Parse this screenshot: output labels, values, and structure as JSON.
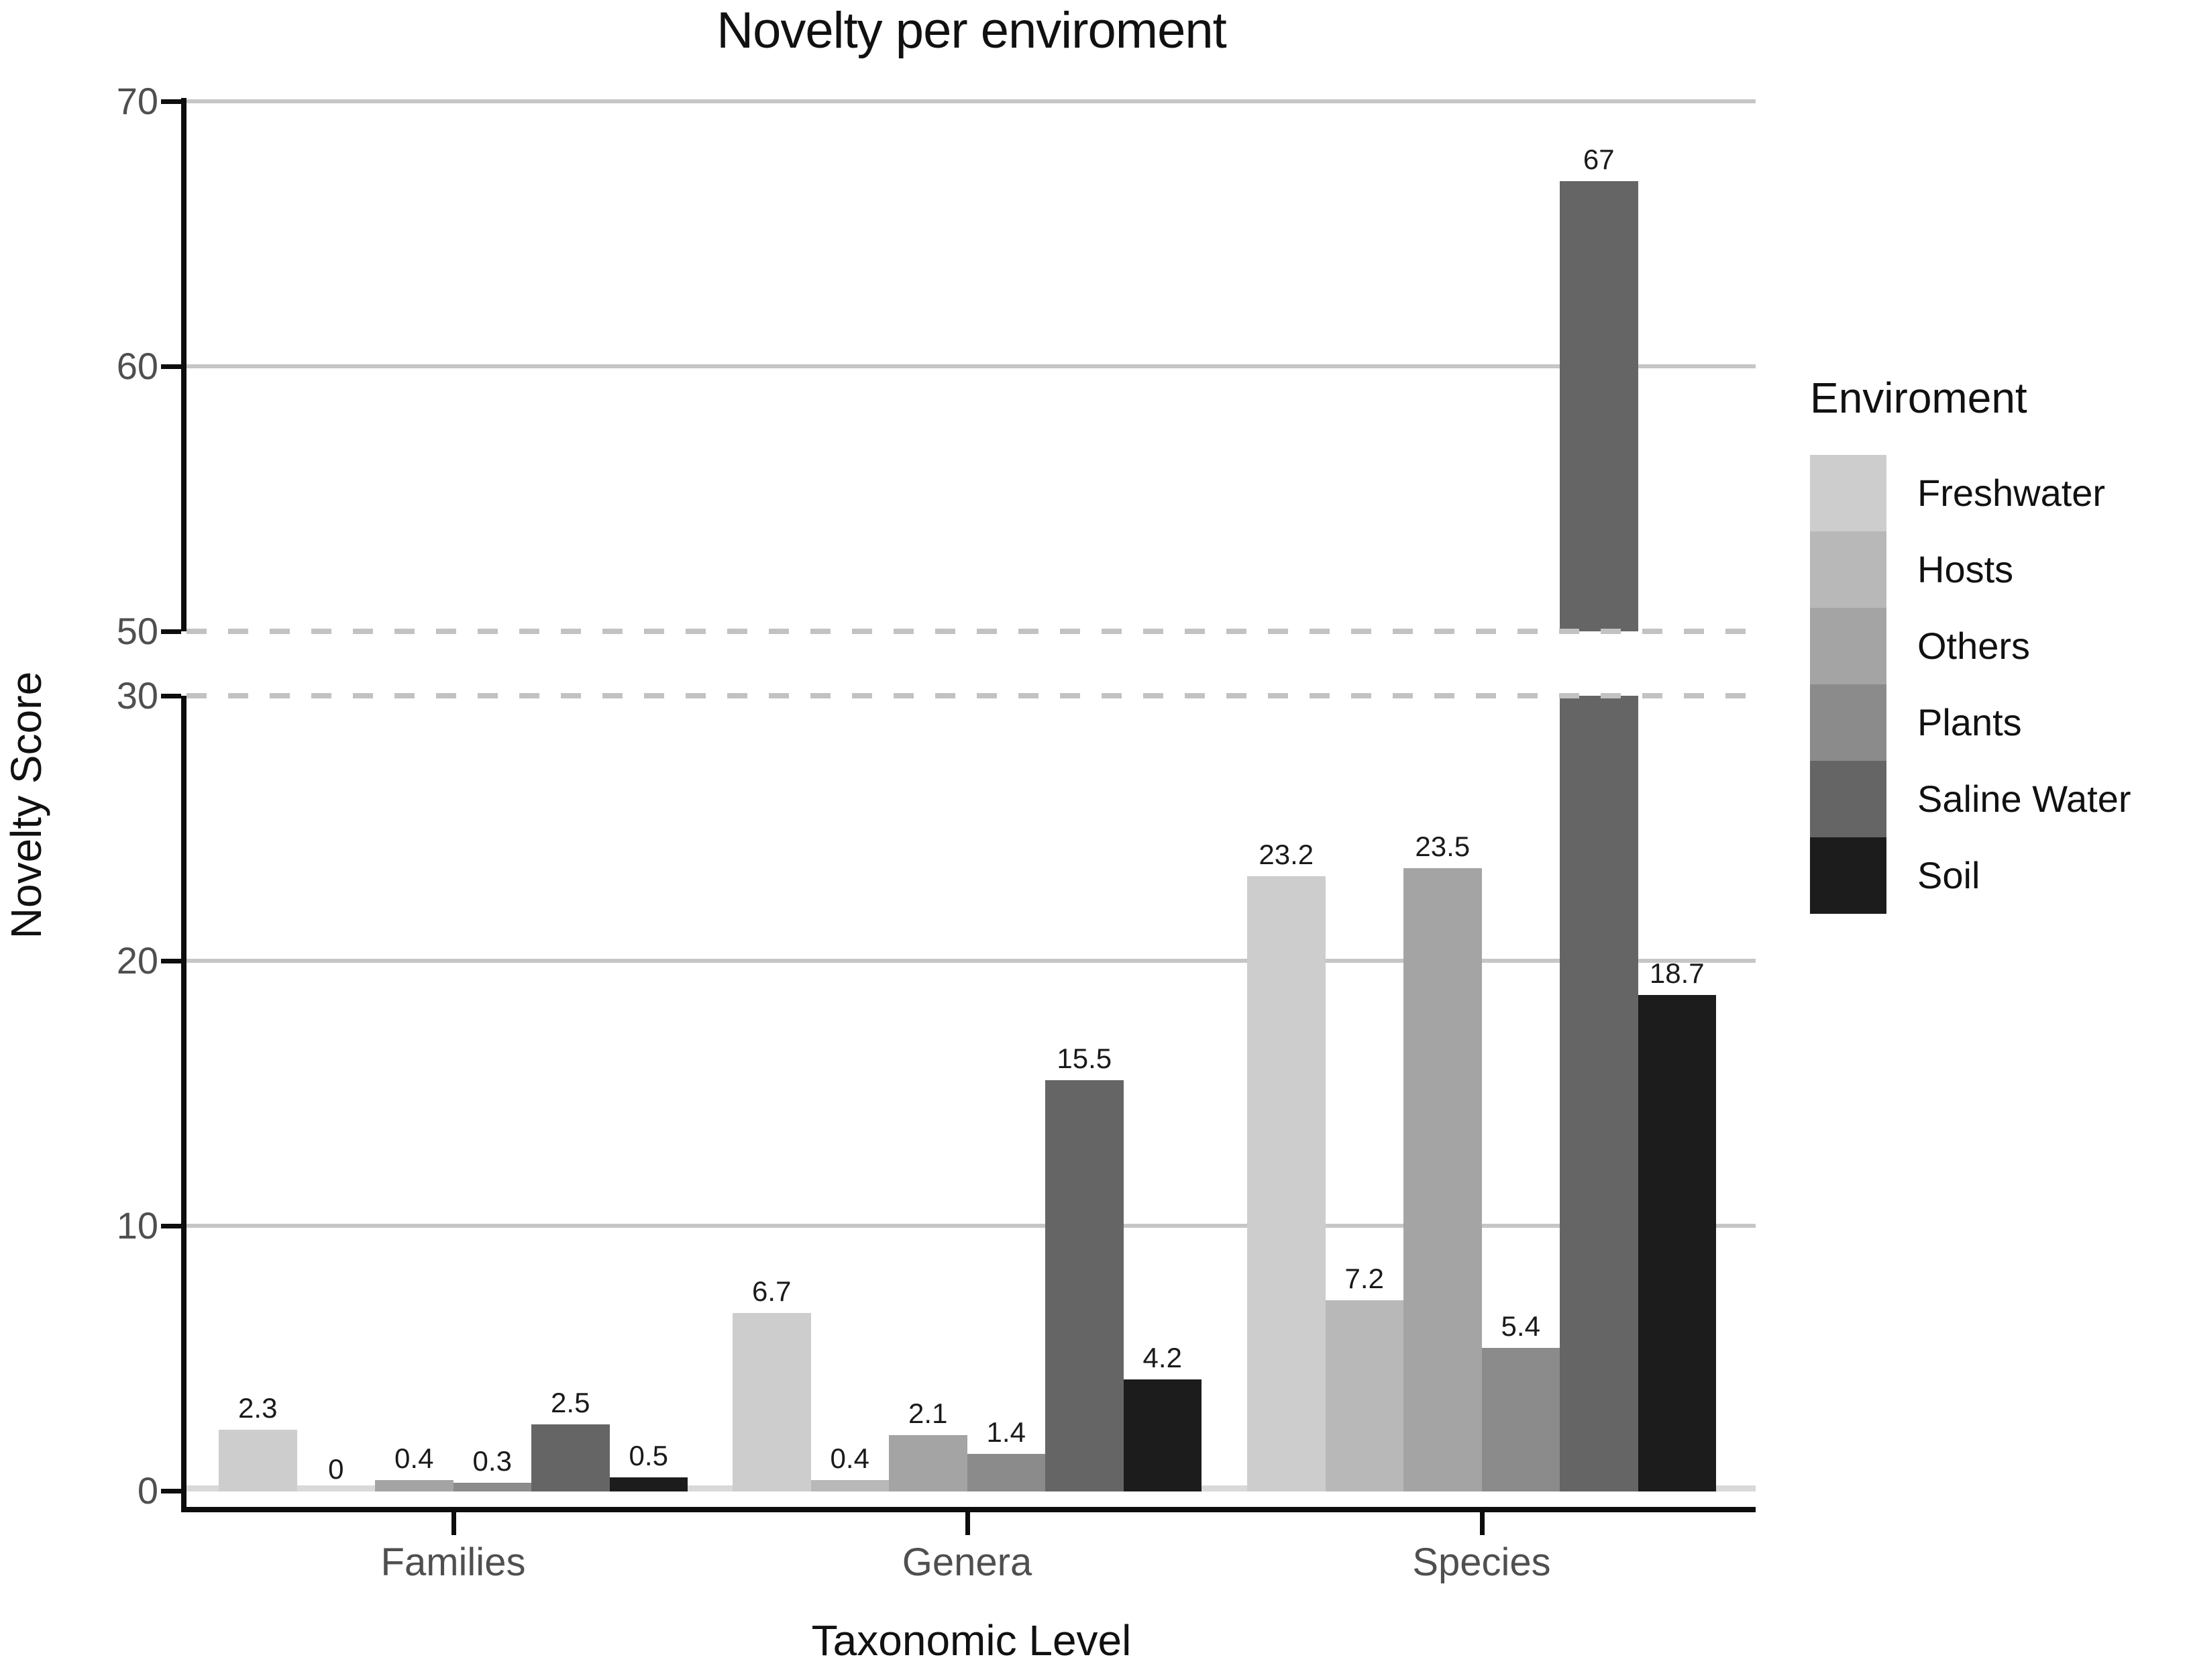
{
  "chart_data": {
    "type": "bar",
    "title": "Novelty per enviroment",
    "xlabel": "Taxonomic Level",
    "ylabel": "Novelty Score",
    "categories": [
      "Families",
      "Genera",
      "Species"
    ],
    "series": [
      {
        "name": "Freshwater",
        "color": "#cdcdcd",
        "values": [
          2.3,
          6.7,
          23.2
        ]
      },
      {
        "name": "Hosts",
        "color": "#b8b8b8",
        "values": [
          0,
          0.4,
          7.2
        ]
      },
      {
        "name": "Others",
        "color": "#a4a4a4",
        "values": [
          0.4,
          2.1,
          23.5
        ]
      },
      {
        "name": "Plants",
        "color": "#8b8b8b",
        "values": [
          0.3,
          1.4,
          5.4
        ]
      },
      {
        "name": "Saline Water",
        "color": "#656565",
        "values": [
          2.5,
          15.5,
          67
        ]
      },
      {
        "name": "Soil",
        "color": "#1c1c1c",
        "values": [
          0.5,
          4.2,
          18.7
        ]
      }
    ],
    "bar_labels": [
      [
        "2.3",
        "0",
        "0.4",
        "0.3",
        "2.5",
        "0.5"
      ],
      [
        "6.7",
        "0.4",
        "2.1",
        "1.4",
        "15.5",
        "4.2"
      ],
      [
        "23.2",
        "7.2",
        "23.5",
        "5.4",
        "67",
        "18.7"
      ]
    ],
    "y_axis": {
      "ticks": [
        0,
        10,
        20,
        30,
        50,
        60,
        70
      ],
      "tick_labels": [
        "0",
        "10",
        "20",
        "30",
        "50",
        "60",
        "70"
      ],
      "solid_gridlines": [
        10,
        20,
        60,
        70
      ],
      "dashed_gridlines": [
        30,
        50
      ],
      "break": {
        "from": 30,
        "to": 50,
        "style": "dashed"
      },
      "ylim_lower": [
        0,
        30
      ],
      "ylim_upper": [
        50,
        70
      ]
    },
    "legend": {
      "title": "Enviroment",
      "position": "right"
    },
    "grid": "horizontal-only",
    "background": "#ffffff"
  }
}
